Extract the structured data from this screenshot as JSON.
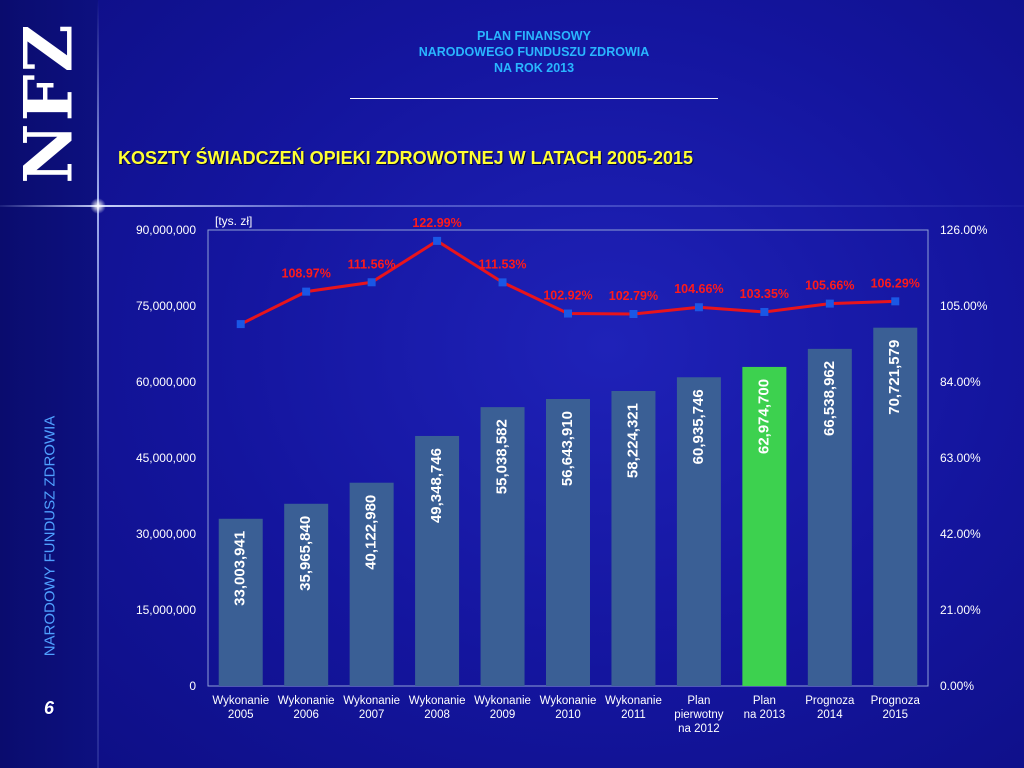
{
  "header": {
    "line1": "PLAN FINANSOWY",
    "line2": "NARODOWEGO FUNDUSZU ZDROWIA",
    "line3": "NA ROK 2013"
  },
  "subtitle": "KOSZTY ŚWIADCZEŃ OPIEKI ZDROWOTNEJ W LATACH 2005-2015",
  "logo": "NFZ",
  "side_text": "NARODOWY FUNDUSZ ZDROWIA",
  "page_number": "6",
  "colors": {
    "bar": "#3a5f95",
    "bar_highlight": "#3dd14f",
    "line": "#e8141c",
    "marker": "#1a57e6",
    "title": "#ffff33",
    "header": "#29b6ff"
  },
  "chart_data": {
    "type": "bar",
    "unit_label": "[tys. zł]",
    "categories": [
      [
        "Wykonanie",
        "2005"
      ],
      [
        "Wykonanie",
        "2006"
      ],
      [
        "Wykonanie",
        "2007"
      ],
      [
        "Wykonanie",
        "2008"
      ],
      [
        "Wykonanie",
        "2009"
      ],
      [
        "Wykonanie",
        "2010"
      ],
      [
        "Wykonanie",
        "2011"
      ],
      [
        "Plan",
        "pierwotny",
        "na 2012"
      ],
      [
        "Plan",
        "na 2013"
      ],
      [
        "Prognoza",
        "2014"
      ],
      [
        "Prognoza",
        "2015"
      ]
    ],
    "values": [
      33003941,
      35965840,
      40122980,
      49348746,
      55038582,
      56643910,
      58224321,
      60935746,
      62974700,
      66538962,
      70721579
    ],
    "value_labels": [
      "33,003,941",
      "35,965,840",
      "40,122,980",
      "49,348,746",
      "55,038,582",
      "56,643,910",
      "58,224,321",
      "60,935,746",
      "62,974,700",
      "66,538,962",
      "70,721,579"
    ],
    "highlight_index": 8,
    "ylim": [
      0,
      90000000
    ],
    "yticks": [
      "0",
      "15,000,000",
      "30,000,000",
      "45,000,000",
      "60,000,000",
      "75,000,000",
      "90,000,000"
    ],
    "secondary": {
      "type": "line",
      "values": [
        100.0,
        108.97,
        111.56,
        122.99,
        111.53,
        102.92,
        102.79,
        104.66,
        103.35,
        105.66,
        106.29
      ],
      "value_labels": [
        "",
        "108.97%",
        "111.56%",
        "122.99%",
        "111.53%",
        "102.92%",
        "102.79%",
        "104.66%",
        "103.35%",
        "105.66%",
        "106.29%"
      ],
      "ylim": [
        0,
        126
      ],
      "yticks": [
        "0.00%",
        "21.00%",
        "42.00%",
        "63.00%",
        "84.00%",
        "105.00%",
        "126.00%"
      ]
    }
  }
}
